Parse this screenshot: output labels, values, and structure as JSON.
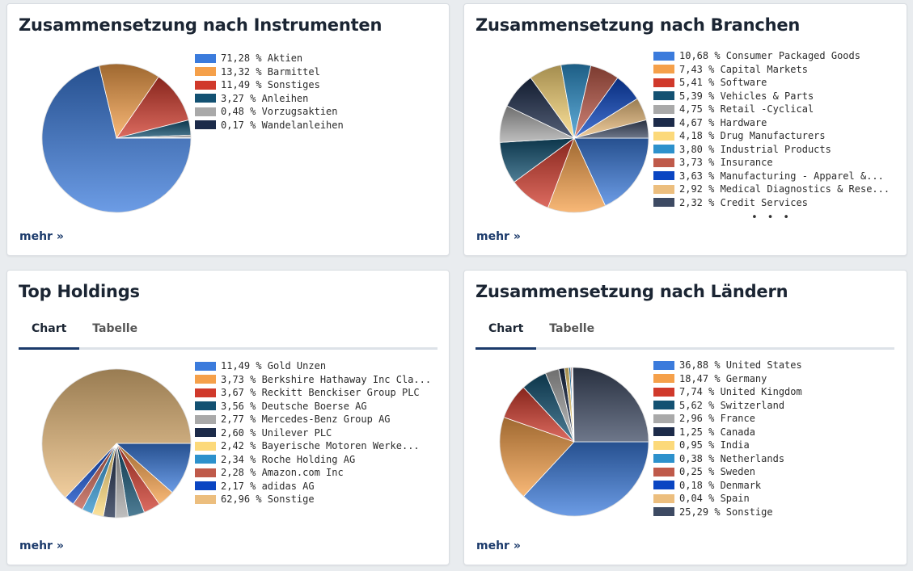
{
  "cards": {
    "instruments": {
      "title": "Zusammensetzung nach Instrumenten",
      "more": "mehr »"
    },
    "sectors": {
      "title": "Zusammensetzung nach Branchen",
      "more": "mehr »",
      "ellipsis": "• • •"
    },
    "holdings": {
      "title": "Top Holdings",
      "tabs": [
        "Chart",
        "Tabelle"
      ],
      "active_tab": "Chart",
      "more": "mehr »"
    },
    "countries": {
      "title": "Zusammensetzung nach Ländern",
      "tabs": [
        "Chart",
        "Tabelle"
      ],
      "active_tab": "Chart",
      "more": "mehr »"
    }
  },
  "chart_data": [
    {
      "type": "pie",
      "title": "Zusammensetzung nach Instrumenten",
      "legend_position": "right",
      "slices": [
        {
          "label": "71,28 % Aktien",
          "value": 71.28,
          "color": "#3b7bdc"
        },
        {
          "label": "13,32 % Barmittel",
          "value": 13.32,
          "color": "#f5a04a"
        },
        {
          "label": "11,49 % Sonstiges",
          "value": 11.49,
          "color": "#d0392b"
        },
        {
          "label": "3,27 % Anleihen",
          "value": 3.27,
          "color": "#135172"
        },
        {
          "label": "0,48 % Vorzugsaktien",
          "value": 0.48,
          "color": "#a9a9a9"
        },
        {
          "label": "0,17 % Wandelanleihen",
          "value": 0.17,
          "color": "#1c2b4a"
        }
      ]
    },
    {
      "type": "pie",
      "title": "Zusammensetzung nach Branchen",
      "legend_position": "right",
      "slices": [
        {
          "label": "10,68 % Consumer Packaged Goods",
          "value": 10.68,
          "color": "#3b7bdc"
        },
        {
          "label": "7,43 % Capital Markets",
          "value": 7.43,
          "color": "#f5a04a"
        },
        {
          "label": "5,41 % Software",
          "value": 5.41,
          "color": "#d0392b"
        },
        {
          "label": "5,39 % Vehicles & Parts",
          "value": 5.39,
          "color": "#135172"
        },
        {
          "label": "4,75 % Retail -Cyclical",
          "value": 4.75,
          "color": "#a9a9a9"
        },
        {
          "label": "4,67 % Hardware",
          "value": 4.67,
          "color": "#1c2b4a"
        },
        {
          "label": "4,18 % Drug Manufacturers",
          "value": 4.18,
          "color": "#fcd97a"
        },
        {
          "label": "3,80 % Industrial Products",
          "value": 3.8,
          "color": "#2d91cc"
        },
        {
          "label": "3,73 % Insurance",
          "value": 3.73,
          "color": "#bf5a4a"
        },
        {
          "label": "3,63 % Manufacturing - Apparel &...",
          "value": 3.63,
          "color": "#0a45c2"
        },
        {
          "label": "2,92 % Medical Diagnostics & Rese...",
          "value": 2.92,
          "color": "#ecbe7e"
        },
        {
          "label": "2,32 % Credit Services",
          "value": 2.32,
          "color": "#3d4a63"
        }
      ]
    },
    {
      "type": "pie",
      "title": "Top Holdings",
      "legend_position": "right",
      "slices": [
        {
          "label": "11,49 % Gold Unzen",
          "value": 11.49,
          "color": "#3b7bdc"
        },
        {
          "label": "3,73 % Berkshire Hathaway Inc Cla...",
          "value": 3.73,
          "color": "#f5a04a"
        },
        {
          "label": "3,67 % Reckitt Benckiser Group PLC",
          "value": 3.67,
          "color": "#d0392b"
        },
        {
          "label": "3,56 % Deutsche Boerse AG",
          "value": 3.56,
          "color": "#135172"
        },
        {
          "label": "2,77 % Mercedes-Benz Group AG",
          "value": 2.77,
          "color": "#a9a9a9"
        },
        {
          "label": "2,60 % Unilever PLC",
          "value": 2.6,
          "color": "#1c2b4a"
        },
        {
          "label": "2,42 % Bayerische Motoren Werke...",
          "value": 2.42,
          "color": "#fcd97a"
        },
        {
          "label": "2,34 % Roche Holding AG",
          "value": 2.34,
          "color": "#2d91cc"
        },
        {
          "label": "2,28 % Amazon.com Inc",
          "value": 2.28,
          "color": "#bf5a4a"
        },
        {
          "label": "2,17 % adidas AG",
          "value": 2.17,
          "color": "#0a45c2"
        },
        {
          "label": "62,96 % Sonstige",
          "value": 62.96,
          "color": "#ecbe7e"
        }
      ]
    },
    {
      "type": "pie",
      "title": "Zusammensetzung nach Ländern",
      "legend_position": "right",
      "slices": [
        {
          "label": "36,88 % United States",
          "value": 36.88,
          "color": "#3b7bdc"
        },
        {
          "label": "18,47 % Germany",
          "value": 18.47,
          "color": "#f5a04a"
        },
        {
          "label": "7,74 % United Kingdom",
          "value": 7.74,
          "color": "#d0392b"
        },
        {
          "label": "5,62 % Switzerland",
          "value": 5.62,
          "color": "#135172"
        },
        {
          "label": "2,96 % France",
          "value": 2.96,
          "color": "#a9a9a9"
        },
        {
          "label": "1,25 % Canada",
          "value": 1.25,
          "color": "#1c2b4a"
        },
        {
          "label": "0,95 % India",
          "value": 0.95,
          "color": "#fcd97a"
        },
        {
          "label": "0,38 % Netherlands",
          "value": 0.38,
          "color": "#2d91cc"
        },
        {
          "label": "0,25 % Sweden",
          "value": 0.25,
          "color": "#bf5a4a"
        },
        {
          "label": "0,18 % Denmark",
          "value": 0.18,
          "color": "#0a45c2"
        },
        {
          "label": "0,04 % Spain",
          "value": 0.04,
          "color": "#ecbe7e"
        },
        {
          "label": "25,29 % Sonstige",
          "value": 25.29,
          "color": "#3d4a63"
        }
      ]
    }
  ]
}
